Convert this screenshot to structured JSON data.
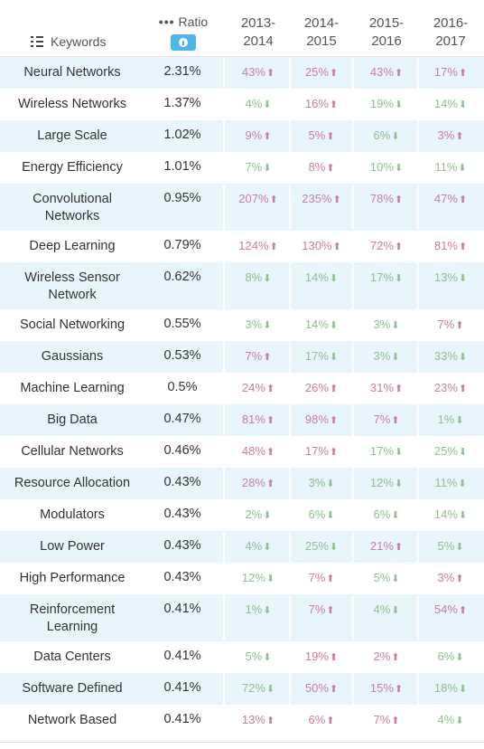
{
  "header": {
    "keywords_label": "Keywords",
    "ratio_label": "Ratio",
    "ratio_dots": "•••",
    "years": [
      "2013-\n2014",
      "2014-\n2015",
      "2015-\n2016",
      "2016-\n2017"
    ]
  },
  "colors": {
    "up": "#c77ea3",
    "down": "#8fc08f",
    "row_alt": "#e9f5fd",
    "info_button": "#4db6e6"
  },
  "rows": [
    {
      "keyword": "Neural Networks",
      "ratio": "2.31%",
      "changes": [
        [
          "43%",
          "up"
        ],
        [
          "25%",
          "up"
        ],
        [
          "43%",
          "up"
        ],
        [
          "17%",
          "up"
        ]
      ]
    },
    {
      "keyword": "Wireless Networks",
      "ratio": "1.37%",
      "changes": [
        [
          "4%",
          "down"
        ],
        [
          "16%",
          "up"
        ],
        [
          "19%",
          "down"
        ],
        [
          "14%",
          "down"
        ]
      ]
    },
    {
      "keyword": "Large Scale",
      "ratio": "1.02%",
      "changes": [
        [
          "9%",
          "up"
        ],
        [
          "5%",
          "up"
        ],
        [
          "6%",
          "down"
        ],
        [
          "3%",
          "up"
        ]
      ]
    },
    {
      "keyword": "Energy Efficiency",
      "ratio": "1.01%",
      "changes": [
        [
          "7%",
          "down"
        ],
        [
          "8%",
          "up"
        ],
        [
          "10%",
          "down"
        ],
        [
          "11%",
          "down"
        ]
      ]
    },
    {
      "keyword": "Convolutional\nNetworks",
      "ratio": "0.95%",
      "changes": [
        [
          "207%",
          "up"
        ],
        [
          "235%",
          "up"
        ],
        [
          "78%",
          "up"
        ],
        [
          "47%",
          "up"
        ]
      ]
    },
    {
      "keyword": "Deep Learning",
      "ratio": "0.79%",
      "changes": [
        [
          "124%",
          "up"
        ],
        [
          "130%",
          "up"
        ],
        [
          "72%",
          "up"
        ],
        [
          "81%",
          "up"
        ]
      ]
    },
    {
      "keyword": "Wireless Sensor\nNetwork",
      "ratio": "0.62%",
      "changes": [
        [
          "8%",
          "down"
        ],
        [
          "14%",
          "down"
        ],
        [
          "17%",
          "down"
        ],
        [
          "13%",
          "down"
        ]
      ]
    },
    {
      "keyword": "Social Networking",
      "ratio": "0.55%",
      "changes": [
        [
          "3%",
          "down"
        ],
        [
          "14%",
          "down"
        ],
        [
          "3%",
          "down"
        ],
        [
          "7%",
          "up"
        ]
      ]
    },
    {
      "keyword": "Gaussians",
      "ratio": "0.53%",
      "changes": [
        [
          "7%",
          "up"
        ],
        [
          "17%",
          "down"
        ],
        [
          "3%",
          "down"
        ],
        [
          "33%",
          "down"
        ]
      ]
    },
    {
      "keyword": "Machine Learning",
      "ratio": "0.5%",
      "changes": [
        [
          "24%",
          "up"
        ],
        [
          "26%",
          "up"
        ],
        [
          "31%",
          "up"
        ],
        [
          "23%",
          "up"
        ]
      ]
    },
    {
      "keyword": "Big Data",
      "ratio": "0.47%",
      "changes": [
        [
          "81%",
          "up"
        ],
        [
          "98%",
          "up"
        ],
        [
          "7%",
          "up"
        ],
        [
          "1%",
          "down"
        ]
      ]
    },
    {
      "keyword": "Cellular Networks",
      "ratio": "0.46%",
      "changes": [
        [
          "48%",
          "up"
        ],
        [
          "17%",
          "up"
        ],
        [
          "17%",
          "down"
        ],
        [
          "25%",
          "down"
        ]
      ]
    },
    {
      "keyword": "Resource Allocation",
      "ratio": "0.43%",
      "changes": [
        [
          "28%",
          "up"
        ],
        [
          "3%",
          "down"
        ],
        [
          "12%",
          "down"
        ],
        [
          "11%",
          "down"
        ]
      ]
    },
    {
      "keyword": "Modulators",
      "ratio": "0.43%",
      "changes": [
        [
          "2%",
          "down"
        ],
        [
          "6%",
          "down"
        ],
        [
          "6%",
          "down"
        ],
        [
          "14%",
          "down"
        ]
      ]
    },
    {
      "keyword": "Low Power",
      "ratio": "0.43%",
      "changes": [
        [
          "4%",
          "down"
        ],
        [
          "25%",
          "down"
        ],
        [
          "21%",
          "up"
        ],
        [
          "5%",
          "down"
        ]
      ]
    },
    {
      "keyword": "High Performance",
      "ratio": "0.43%",
      "changes": [
        [
          "12%",
          "down"
        ],
        [
          "7%",
          "up"
        ],
        [
          "5%",
          "down"
        ],
        [
          "3%",
          "up"
        ]
      ]
    },
    {
      "keyword": "Reinforcement\nLearning",
      "ratio": "0.41%",
      "changes": [
        [
          "1%",
          "down"
        ],
        [
          "7%",
          "up"
        ],
        [
          "4%",
          "down"
        ],
        [
          "54%",
          "up"
        ]
      ]
    },
    {
      "keyword": "Data Centers",
      "ratio": "0.41%",
      "changes": [
        [
          "5%",
          "down"
        ],
        [
          "19%",
          "up"
        ],
        [
          "2%",
          "up"
        ],
        [
          "6%",
          "down"
        ]
      ]
    },
    {
      "keyword": "Software Defined",
      "ratio": "0.41%",
      "changes": [
        [
          "72%",
          "down"
        ],
        [
          "50%",
          "up"
        ],
        [
          "15%",
          "up"
        ],
        [
          "18%",
          "down"
        ]
      ]
    },
    {
      "keyword": "Network Based",
      "ratio": "0.41%",
      "changes": [
        [
          "13%",
          "up"
        ],
        [
          "6%",
          "up"
        ],
        [
          "7%",
          "up"
        ],
        [
          "4%",
          "down"
        ]
      ]
    }
  ]
}
